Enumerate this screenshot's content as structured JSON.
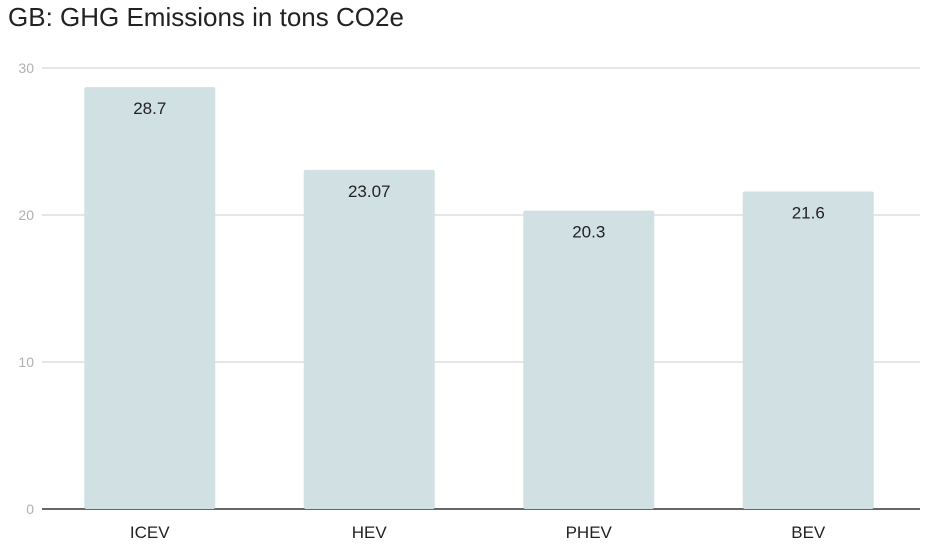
{
  "chart_data": {
    "type": "bar",
    "title": "GB: GHG Emissions in tons CO2e",
    "xlabel": "",
    "ylabel": "",
    "categories": [
      "ICEV",
      "HEV",
      "PHEV",
      "BEV"
    ],
    "values": [
      28.7,
      23.07,
      20.3,
      21.6
    ],
    "value_labels": [
      "28.7",
      "23.07",
      "20.3",
      "21.6"
    ],
    "ylim": [
      0,
      30
    ],
    "yticks": [
      0,
      10,
      20,
      30
    ],
    "grid": true,
    "legend": "none"
  },
  "colors": {
    "bar": "#d0e0e3",
    "grid": "#cccccc",
    "axis": "#333333"
  }
}
